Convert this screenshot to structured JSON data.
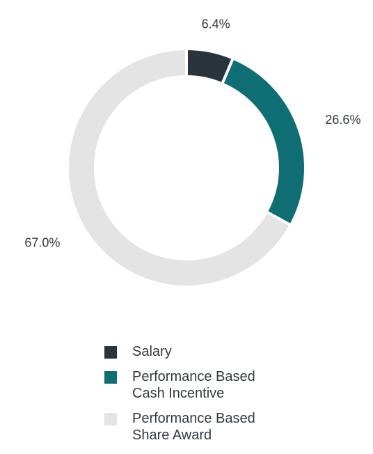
{
  "chart_data": {
    "type": "pie",
    "donut": true,
    "categories": [
      "Salary",
      "Performance Based Cash Incentive",
      "Performance Based Share Award"
    ],
    "values": [
      6.4,
      26.6,
      67.0
    ],
    "value_labels": [
      "6.4%",
      "26.6%",
      "67.0%"
    ],
    "colors": [
      "#2a343c",
      "#0f6e74",
      "#e4e4e4"
    ],
    "legend_position": "bottom"
  },
  "legend": {
    "items": [
      {
        "label": "Salary",
        "color": "#2a343c"
      },
      {
        "label": "Performance Based\nCash Incentive",
        "color": "#0f6e74"
      },
      {
        "label": "Performance Based\nShare Award",
        "color": "#e4e4e4"
      }
    ]
  }
}
